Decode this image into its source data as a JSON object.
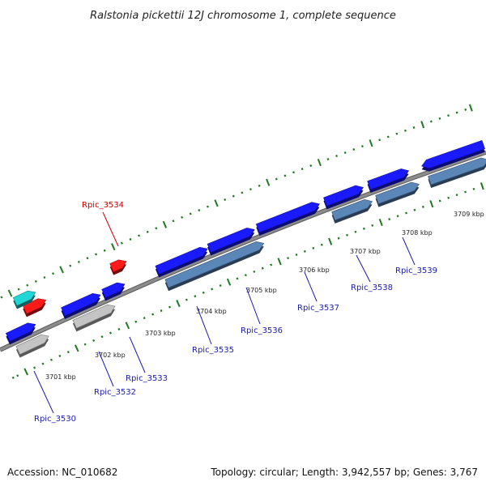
{
  "title": "Ralstonia pickettii 12J chromosome 1, complete sequence",
  "footer": {
    "accession": "Accession: NC_010682",
    "topology": "Topology: circular; Length: 3,942,557 bp; Genes: 3,767"
  },
  "colors": {
    "backbone": "#8c8c8c",
    "tick": "#1f7a1f",
    "gene_blue": "#1a1aff",
    "gene_steel": "#5b86b8",
    "gene_gray": "#c4c4c4",
    "gene_red": "#ff1a1a",
    "gene_cyan": "#22d6d6",
    "label_blue": "#1a1ab0",
    "label_red": "#cc0000"
  },
  "kbp_labels": [
    "3701 kbp",
    "3702 kbp",
    "3703 kbp",
    "3704 kbp",
    "3705 kbp",
    "3706 kbp",
    "3707 kbp",
    "3708 kbp",
    "3709 kbp"
  ],
  "gene_labels": [
    {
      "text": "Rpic_3530",
      "color": "blue"
    },
    {
      "text": "Rpic_3532",
      "color": "blue"
    },
    {
      "text": "Rpic_3533",
      "color": "blue"
    },
    {
      "text": "Rpic_3534",
      "color": "red"
    },
    {
      "text": "Rpic_3535",
      "color": "blue"
    },
    {
      "text": "Rpic_3536",
      "color": "blue"
    },
    {
      "text": "Rpic_3537",
      "color": "blue"
    },
    {
      "text": "Rpic_3538",
      "color": "blue"
    },
    {
      "text": "Rpic_3539",
      "color": "blue"
    }
  ]
}
